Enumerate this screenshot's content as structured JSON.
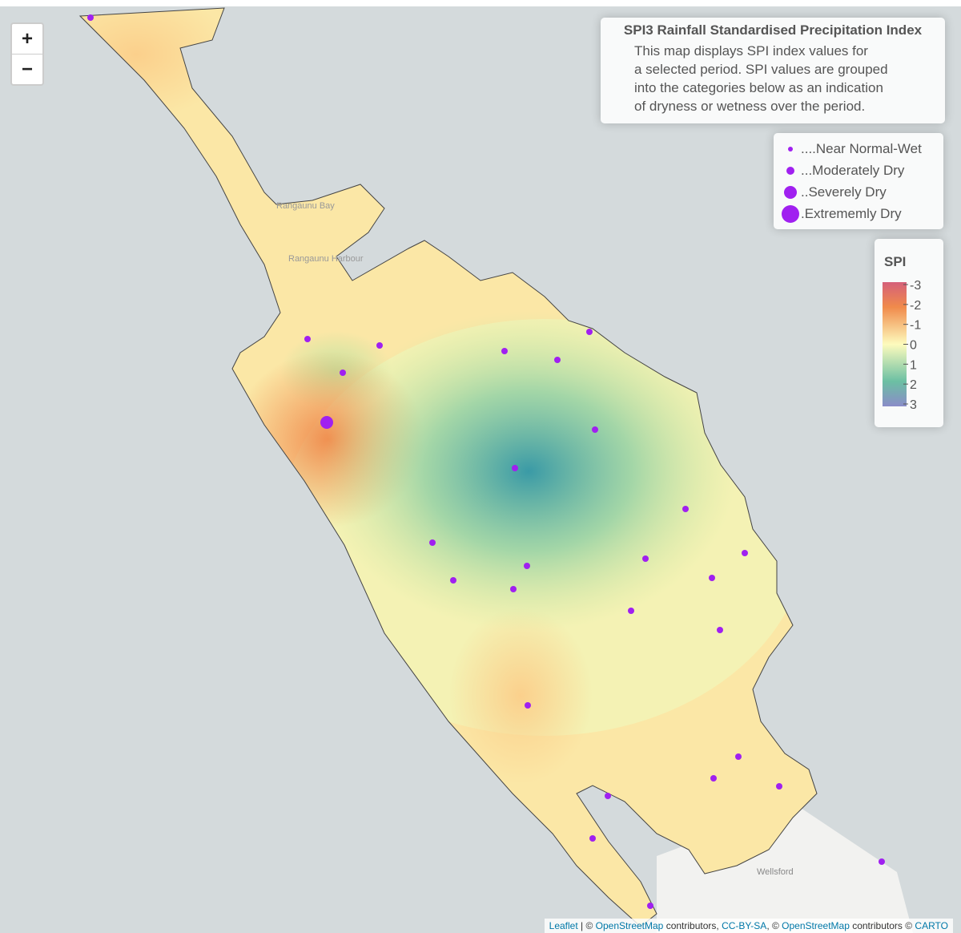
{
  "zoom_controls": {
    "zoom_in": "+",
    "zoom_out": "−"
  },
  "info_box": {
    "title": "SPI3 Rainfall Standardised Precipitation Index",
    "description": [
      "This map displays SPI index values for",
      "a selected period. SPI values are grouped",
      "into the categories below as an indication",
      "of dryness or wetness over the period."
    ]
  },
  "size_legend": {
    "items": [
      "....Near Normal-Wet",
      "...Moderately Dry",
      "..Severely Dry",
      ".Extrememly Dry"
    ]
  },
  "spi_legend": {
    "title": "SPI",
    "ticks": [
      -3,
      -2,
      -1,
      0,
      1,
      2,
      3
    ]
  },
  "map_labels": [
    "Rangaunu Bay",
    "Rangaunu Harbour",
    "Wellsford"
  ],
  "attribution": {
    "parts": [
      "Leaflet",
      " | © ",
      "OpenStreetMap",
      " contributors, ",
      "CC-BY-SA",
      ", © ",
      "OpenStreetMap",
      " contributors © ",
      "CARTO"
    ]
  }
}
